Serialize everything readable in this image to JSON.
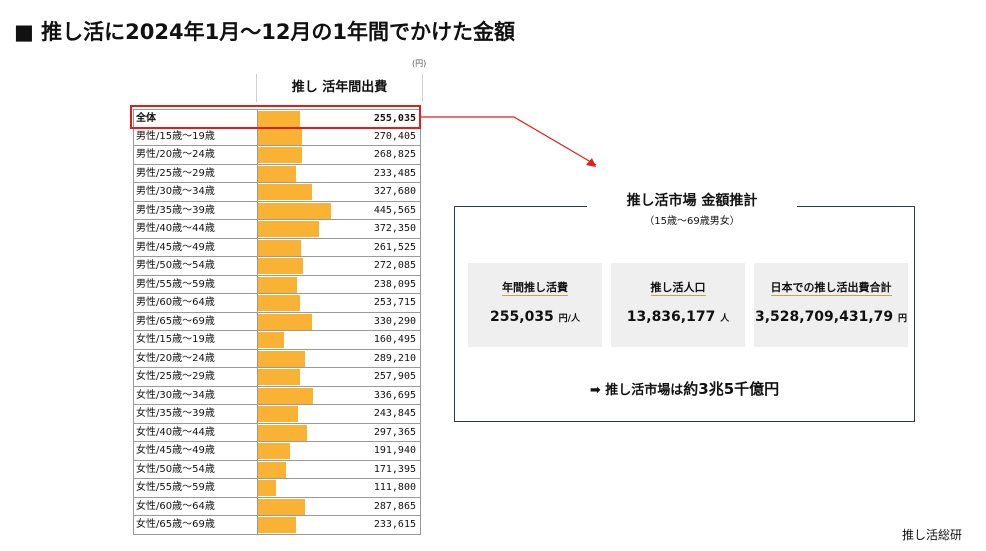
{
  "page": {
    "title": "■ 推し活に2024年1月～12月の1年間でかけた金額",
    "source": "推し活総研"
  },
  "chart_data": {
    "type": "bar",
    "orientation": "horizontal",
    "unit": "(円)",
    "column_header": "推し 活年間出費",
    "xlim": [
      0,
      1000000
    ],
    "categories": [
      "全体",
      "男性/15歳～19歳",
      "男性/20歳～24歳",
      "男性/25歳～29歳",
      "男性/30歳～34歳",
      "男性/35歳～39歳",
      "男性/40歳～44歳",
      "男性/45歳～49歳",
      "男性/50歳～54歳",
      "男性/55歳～59歳",
      "男性/60歳～64歳",
      "男性/65歳～69歳",
      "女性/15歳～19歳",
      "女性/20歳～24歳",
      "女性/25歳～29歳",
      "女性/30歳～34歳",
      "女性/35歳～39歳",
      "女性/40歳～44歳",
      "女性/45歳～49歳",
      "女性/50歳～54歳",
      "女性/55歳～59歳",
      "女性/60歳～64歳",
      "女性/65歳～69歳"
    ],
    "values": [
      255035,
      270405,
      268825,
      233485,
      327680,
      445565,
      372350,
      261525,
      272085,
      238095,
      253715,
      330290,
      160495,
      289210,
      257905,
      336695,
      243845,
      297365,
      191940,
      171395,
      111800,
      287865,
      233615
    ],
    "value_labels": [
      "255,035",
      "270,405",
      "268,825",
      "233,485",
      "327,680",
      "445,565",
      "372,350",
      "261,525",
      "272,085",
      "238,095",
      "253,715",
      "330,290",
      "160,495",
      "289,210",
      "257,905",
      "336,695",
      "243,845",
      "297,365",
      "191,940",
      "171,395",
      "111,800",
      "287,865",
      "233,615"
    ],
    "highlighted_category": "全体",
    "bar_color": "#f9b233",
    "highlight_color": "#e01e1e"
  },
  "market_panel": {
    "title": "推し活市場 金額推計",
    "subtitle": "（15歳～69歳男女）",
    "cards": [
      {
        "label": "年間推し活費",
        "value": "255,035",
        "unit": "円/人"
      },
      {
        "label": "推し活人口",
        "value": "13,836,177",
        "unit": "人"
      },
      {
        "label": "日本での推し活出費合計",
        "value": "3,528,709,431,79",
        "unit": "円"
      }
    ],
    "conclusion_prefix": "➡ 推し活市場は",
    "conclusion_emphasis": "約3兆5千億円"
  }
}
